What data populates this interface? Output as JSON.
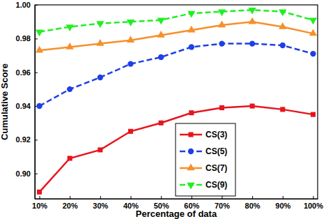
{
  "chart_data": {
    "type": "line",
    "x_label": "Percentage of data",
    "y_label": "Cumulative Score",
    "categories": [
      "10%",
      "20%",
      "30%",
      "40%",
      "50%",
      "60%",
      "70%",
      "80%",
      "90%",
      "100%"
    ],
    "series": [
      {
        "name": "CS(3)",
        "color": "#e8141c",
        "marker": "square",
        "line_style": "solid",
        "values": [
          0.889,
          0.909,
          0.914,
          0.925,
          0.93,
          0.936,
          0.939,
          0.94,
          0.938,
          0.935
        ]
      },
      {
        "name": "CS(5)",
        "color": "#1f3fe6",
        "marker": "circle",
        "line_style": "dashed",
        "values": [
          0.94,
          0.95,
          0.957,
          0.965,
          0.969,
          0.975,
          0.977,
          0.977,
          0.976,
          0.971
        ]
      },
      {
        "name": "CS(7)",
        "color": "#f78f2a",
        "marker": "triangle-up",
        "line_style": "solid",
        "values": [
          0.973,
          0.975,
          0.977,
          0.979,
          0.982,
          0.985,
          0.988,
          0.99,
          0.987,
          0.983
        ]
      },
      {
        "name": "CS(9)",
        "color": "#22ee22",
        "marker": "triangle-down",
        "line_style": "dashed",
        "values": [
          0.984,
          0.987,
          0.989,
          0.99,
          0.991,
          0.995,
          0.996,
          0.997,
          0.996,
          0.991
        ]
      }
    ],
    "ylim": [
      0.885,
      1.0
    ],
    "yticks": [
      {
        "value": 0.9,
        "label": "0.90"
      },
      {
        "value": 0.92,
        "label": "0.92"
      },
      {
        "value": 0.94,
        "label": "0.94"
      },
      {
        "value": 0.96,
        "label": "0.96"
      },
      {
        "value": 0.98,
        "label": "0.98"
      },
      {
        "value": 1.0,
        "label": "1.00"
      }
    ],
    "grid": false,
    "legend": "lower right"
  }
}
